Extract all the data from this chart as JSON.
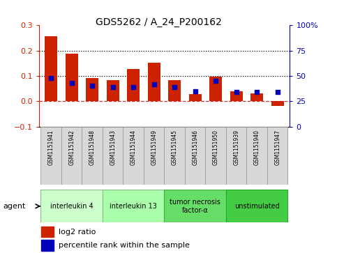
{
  "title": "GDS5262 / A_24_P200162",
  "samples": [
    "GSM1151941",
    "GSM1151942",
    "GSM1151948",
    "GSM1151943",
    "GSM1151944",
    "GSM1151949",
    "GSM1151945",
    "GSM1151946",
    "GSM1151950",
    "GSM1151939",
    "GSM1151940",
    "GSM1151947"
  ],
  "log2_ratio": [
    0.258,
    0.188,
    0.092,
    0.082,
    0.128,
    0.152,
    0.082,
    0.028,
    0.097,
    0.04,
    0.03,
    -0.018
  ],
  "percentile": [
    48,
    43,
    40,
    39,
    39,
    42,
    39,
    35,
    45,
    34,
    34,
    34
  ],
  "agents": [
    {
      "label": "interleukin 4",
      "start": 0,
      "end": 3,
      "color": "#ccffcc",
      "edge": "#88bb88"
    },
    {
      "label": "interleukin 13",
      "start": 3,
      "end": 6,
      "color": "#aaffaa",
      "edge": "#88bb88"
    },
    {
      "label": "tumor necrosis\nfactor-α",
      "start": 6,
      "end": 9,
      "color": "#66dd66",
      "edge": "#44aa44"
    },
    {
      "label": "unstimulated",
      "start": 9,
      "end": 12,
      "color": "#44cc44",
      "edge": "#22aa22"
    }
  ],
  "bar_color": "#cc2200",
  "dot_color": "#0000bb",
  "ylim_left": [
    -0.1,
    0.3
  ],
  "ylim_right": [
    0,
    100
  ],
  "yticks_left": [
    -0.1,
    0.0,
    0.1,
    0.2,
    0.3
  ],
  "yticks_right": [
    0,
    25,
    50,
    75,
    100
  ],
  "ytick_labels_right": [
    "0",
    "25",
    "50",
    "75",
    "100%"
  ],
  "hlines": [
    0.1,
    0.2
  ],
  "zero_line_color": "#cc3333",
  "legend_log2": "log2 ratio",
  "legend_pct": "percentile rank within the sample",
  "agent_label": "agent"
}
